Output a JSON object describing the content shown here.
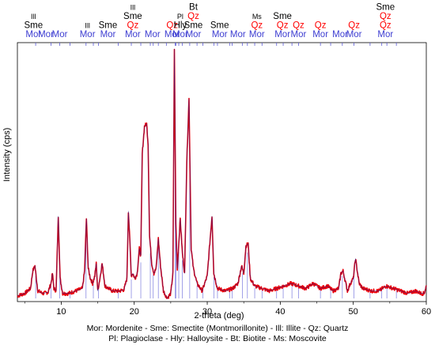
{
  "colors": {
    "measured": "#e8000b",
    "fit": "#1a1a8a",
    "ticks": "#5a5ad6",
    "qz": "#ff0000",
    "black": "#000000"
  },
  "chart_data": {
    "type": "line",
    "title": "",
    "xlabel": "2-theta (deg)",
    "ylabel": "Intensity (cps)",
    "xlim": [
      4,
      60
    ],
    "ylim": [
      0,
      100
    ],
    "x_ticks": [
      "10",
      "20",
      "30",
      "40",
      "50",
      "60"
    ],
    "x_tick_values": [
      10,
      20,
      30,
      40,
      50,
      60
    ],
    "grid": false,
    "series": [
      {
        "x": [
          4,
          5,
          5.8,
          6.1,
          6.4,
          6.8,
          7.5,
          8.2,
          8.6,
          8.8,
          9.0,
          9.3,
          9.6,
          9.85,
          10.2,
          11,
          12,
          12.9,
          13.2,
          13.45,
          13.7,
          14.0,
          14.3,
          14.6,
          14.8,
          15.0,
          15.3,
          15.6,
          16,
          17,
          18,
          18.6,
          19.0,
          19.2,
          19.4,
          19.6,
          19.8,
          20.1,
          20.4,
          20.7,
          20.9,
          21.1,
          21.4,
          21.7,
          21.9,
          22.1,
          22.4,
          22.7,
          23.0,
          23.3,
          23.6,
          24.0,
          24.5,
          25.0,
          25.3,
          25.5,
          25.7,
          25.9,
          26.3,
          26.6,
          26.9,
          27.2,
          27.5,
          27.8,
          28.1,
          28.6,
          29.3,
          30.0,
          30.4,
          30.65,
          30.9,
          31.4,
          32.5,
          33.5,
          34.2,
          34.7,
          35.0,
          35.3,
          35.6,
          35.9,
          36.5,
          37.5,
          38.5,
          39.5,
          40.5,
          41.5,
          42.5,
          43.5,
          44.5,
          45.5,
          46.5,
          47.2,
          48.0,
          48.3,
          48.6,
          49.2,
          49.6,
          50.0,
          50.3,
          50.5,
          50.8,
          51.3,
          52.5,
          53.5,
          54.5,
          55.5,
          56.5,
          57.5,
          58.5,
          59.3,
          59.7,
          60
        ],
        "y": [
          1,
          2,
          4,
          11,
          13,
          3,
          2,
          2.5,
          6,
          10,
          4,
          3,
          33,
          8,
          2,
          2,
          3,
          4,
          11,
          32,
          12,
          8,
          6,
          9,
          14,
          3,
          8,
          14,
          5,
          3,
          3,
          3.5,
          8,
          35,
          23,
          9,
          10,
          8,
          10,
          20,
          17,
          58,
          69,
          70,
          62,
          25,
          14,
          10,
          12,
          24,
          13,
          3,
          0,
          2,
          10,
          100,
          30,
          12,
          32,
          18,
          10,
          55,
          80,
          20,
          12,
          6,
          3,
          9,
          24,
          33,
          10,
          4,
          3,
          4,
          6,
          13,
          10,
          21,
          22,
          8,
          5,
          4,
          3,
          4,
          5,
          6,
          5,
          4,
          6,
          4,
          5,
          3,
          4,
          10,
          11,
          3,
          6,
          8,
          16,
          12,
          6,
          4,
          3,
          3,
          5,
          4,
          3,
          2,
          3,
          2,
          2,
          5
        ]
      }
    ],
    "phase_labels": [
      {
        "x": 6.2,
        "lines": [
          {
            "text": "Ill",
            "color": "black"
          },
          {
            "text": "Sme",
            "color": "black"
          },
          {
            "text": "Mor",
            "color": "blue"
          }
        ]
      },
      {
        "x": 9.8,
        "lines": [
          {
            "text": "Mor",
            "color": "blue"
          }
        ]
      },
      {
        "x": 7.9,
        "lines": [
          {
            "text": "Mor",
            "color": "blue"
          }
        ]
      },
      {
        "x": 13.6,
        "lines": [
          {
            "text": "Ill",
            "color": "black"
          },
          {
            "text": "Mor",
            "color": "blue"
          }
        ]
      },
      {
        "x": 16.4,
        "lines": [
          {
            "text": "Sme",
            "color": "black"
          },
          {
            "text": "Mor",
            "color": "blue"
          }
        ]
      },
      {
        "x": 19.8,
        "lines": [
          {
            "text": "Ill",
            "color": "black"
          },
          {
            "text": "Sme",
            "color": "black"
          },
          {
            "text": "Qz",
            "color": "red"
          },
          {
            "text": "Mor",
            "color": "blue"
          }
        ]
      },
      {
        "x": 22.5,
        "lines": [
          {
            "text": "Mor",
            "color": "blue"
          }
        ]
      },
      {
        "x": 25.2,
        "lines": [
          {
            "text": "Qz",
            "color": "red"
          },
          {
            "text": "Mor",
            "color": "blue"
          }
        ]
      },
      {
        "x": 26.3,
        "lines": [
          {
            "text": "Pl",
            "color": "black"
          },
          {
            "text": "Hly",
            "color": "black"
          },
          {
            "text": "Mor",
            "color": "blue"
          }
        ]
      },
      {
        "x": 28.1,
        "lines": [
          {
            "text": "Bt",
            "color": "black"
          },
          {
            "text": "Qz",
            "color": "red"
          },
          {
            "text": "Sme",
            "color": "black"
          },
          {
            "text": "Mor",
            "color": "blue"
          }
        ]
      },
      {
        "x": 31.7,
        "lines": [
          {
            "text": "Sme",
            "color": "black"
          },
          {
            "text": "Mor",
            "color": "blue"
          }
        ]
      },
      {
        "x": 34.2,
        "lines": [
          {
            "text": "Mor",
            "color": "blue"
          }
        ]
      },
      {
        "x": 36.8,
        "lines": [
          {
            "text": "Ms",
            "color": "black"
          },
          {
            "text": "Qz",
            "color": "red"
          },
          {
            "text": "Mor",
            "color": "blue"
          }
        ]
      },
      {
        "x": 40.3,
        "lines": [
          {
            "text": "Sme",
            "color": "black"
          },
          {
            "text": "Qz",
            "color": "red"
          },
          {
            "text": "Mor",
            "color": "blue"
          }
        ]
      },
      {
        "x": 42.5,
        "lines": [
          {
            "text": "Qz",
            "color": "red"
          },
          {
            "text": "Mor",
            "color": "blue"
          }
        ]
      },
      {
        "x": 45.5,
        "lines": [
          {
            "text": "Qz",
            "color": "red"
          },
          {
            "text": "Mor",
            "color": "blue"
          }
        ]
      },
      {
        "x": 48.2,
        "lines": [
          {
            "text": "Mor",
            "color": "blue"
          }
        ]
      },
      {
        "x": 50.1,
        "lines": [
          {
            "text": "Qz",
            "color": "red"
          },
          {
            "text": "Mor",
            "color": "blue"
          }
        ]
      },
      {
        "x": 54.4,
        "lines": [
          {
            "text": "Sme",
            "color": "black"
          },
          {
            "text": "Qz",
            "color": "red"
          },
          {
            "text": "Qz",
            "color": "red"
          },
          {
            "text": "Mor",
            "color": "blue"
          }
        ]
      }
    ],
    "tick_marks_x": [
      6.5,
      8.6,
      9.8,
      11.2,
      13.4,
      14.4,
      15.1,
      17.8,
      19.6,
      20.9,
      22.2,
      22.6,
      23.3,
      24.4,
      25.6,
      25.7,
      26.1,
      26.6,
      27.6,
      28.6,
      29.4,
      30.9,
      31.4,
      33.1,
      33.4,
      34.8,
      35.5,
      36.5,
      37.5,
      39.5,
      40.4,
      41.6,
      42.5,
      45.5,
      46.9,
      48.5,
      50.1,
      52.3,
      53.9,
      54.6,
      55.9
    ]
  },
  "caption": {
    "line1": "Mor: Mordenite - Sme: Smectite (Montmorillonite) - Ill: Illite - Qz: Quartz",
    "line2": "Pl: Plagioclase - Hly: Halloysite - Bt: Biotite - Ms: Moscovite"
  }
}
